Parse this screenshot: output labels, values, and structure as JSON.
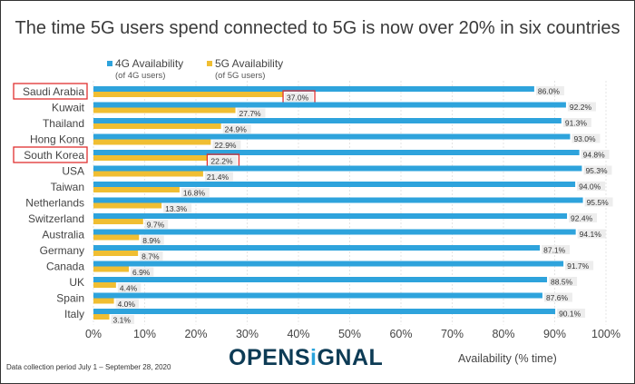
{
  "chart_data": {
    "type": "bar",
    "orientation": "horizontal",
    "title": "The time 5G users spend connected to 5G is now over 20% in six countries",
    "categories": [
      "Saudi Arabia",
      "Kuwait",
      "Thailand",
      "Hong Kong",
      "South Korea",
      "USA",
      "Taiwan",
      "Netherlands",
      "Switzerland",
      "Australia",
      "Germany",
      "Canada",
      "UK",
      "Spain",
      "Italy"
    ],
    "series": [
      {
        "name": "4G Availability",
        "subtitle": "(of 4G users)",
        "color": "#2ea3dc",
        "values": [
          86.0,
          92.2,
          91.3,
          93.0,
          94.8,
          95.3,
          94.0,
          95.5,
          92.4,
          94.1,
          87.1,
          91.7,
          88.5,
          87.6,
          90.1
        ]
      },
      {
        "name": "5G Availability",
        "subtitle": "(of 5G users)",
        "color": "#f0be32",
        "values": [
          37.0,
          27.7,
          24.9,
          22.9,
          22.2,
          21.4,
          16.8,
          13.3,
          9.7,
          8.9,
          8.7,
          6.9,
          4.4,
          4.0,
          3.1
        ]
      }
    ],
    "highlighted_categories": [
      "Saudi Arabia",
      "South Korea"
    ],
    "xlabel": "Availability (% time)",
    "ylabel": "",
    "xlim": [
      0,
      100
    ],
    "xticks": [
      "0%",
      "10%",
      "20%",
      "30%",
      "40%",
      "50%",
      "60%",
      "70%",
      "80%",
      "90%",
      "100%"
    ],
    "grid": true,
    "legend_position": "top-left",
    "highlight_color": "#e03030"
  },
  "footer": {
    "note": "Data collection period July 1 – September 28, 2020",
    "logo_prefix": "OPENS",
    "logo_i": "i",
    "logo_suffix": "GNAL"
  }
}
